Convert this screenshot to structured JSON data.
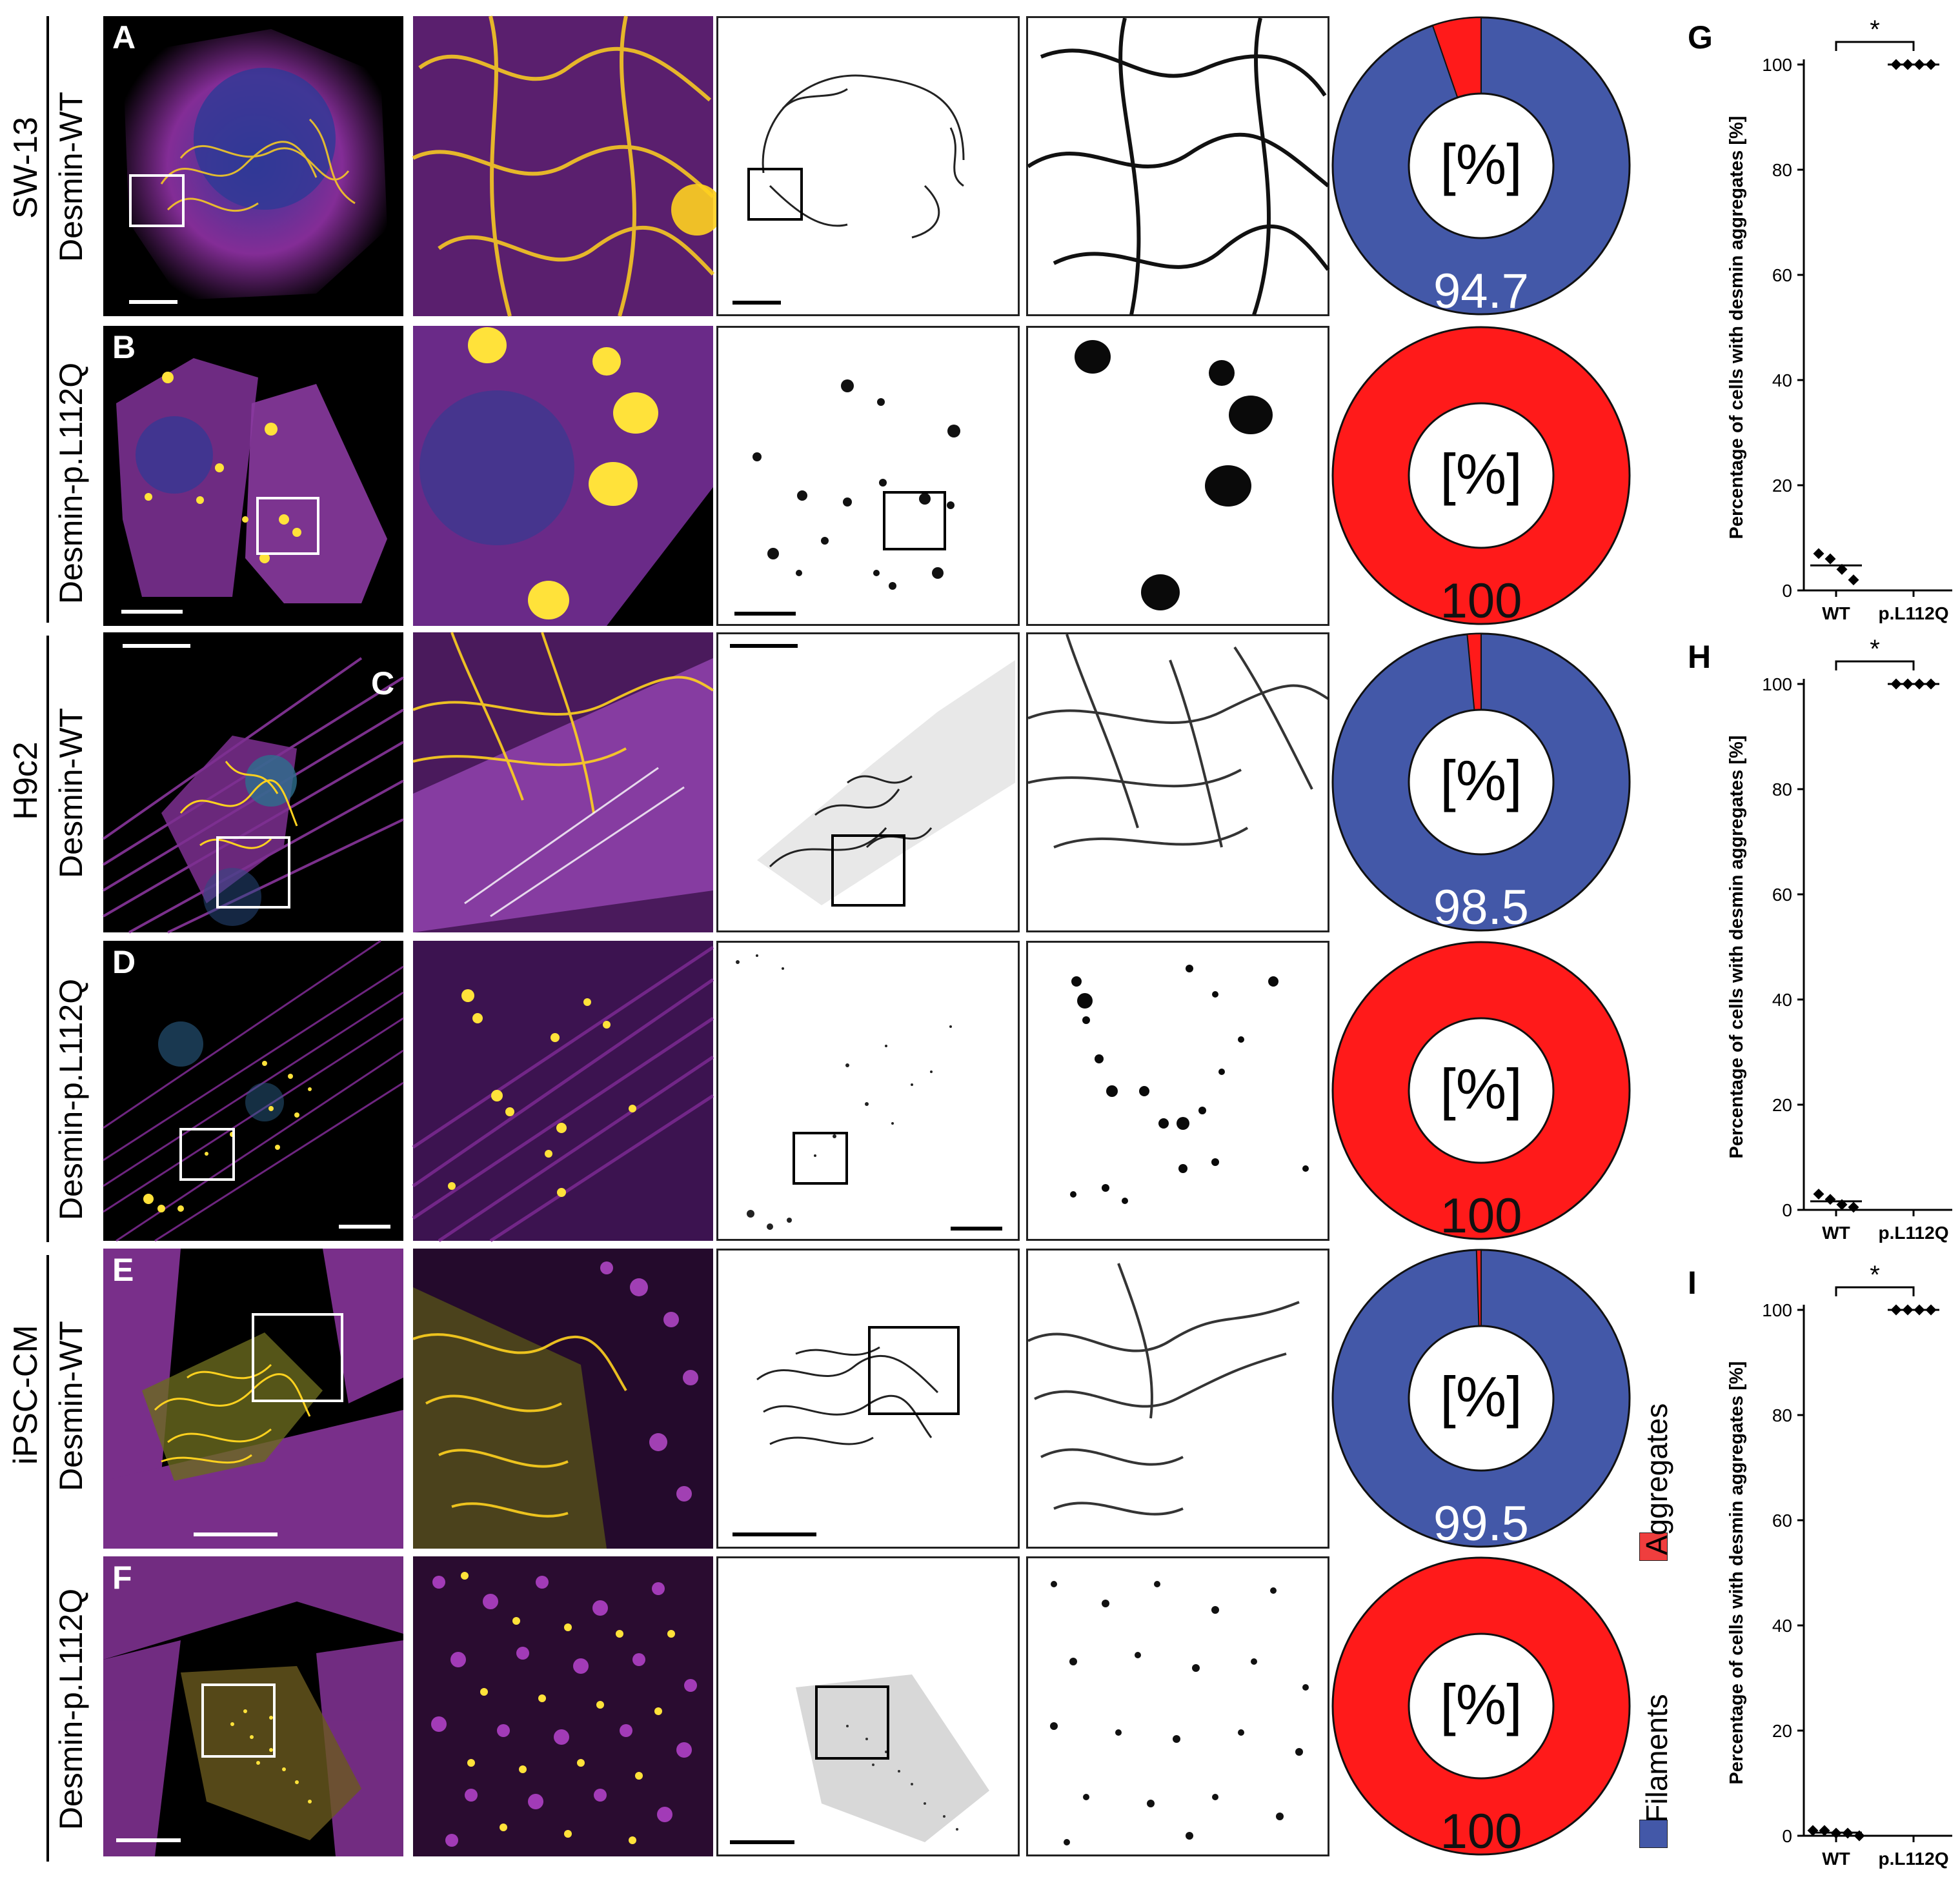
{
  "groups": [
    {
      "label": "SW-13"
    },
    {
      "label": "H9c2"
    },
    {
      "label": "iPSC-CM"
    }
  ],
  "rows": [
    {
      "label": "Desmin-WT",
      "letter": "A",
      "pie_label": "94.7",
      "filaments_pct": 94.7,
      "aggregates_pct": 5.3
    },
    {
      "label": "Desmin-p.L112Q",
      "letter": "B",
      "pie_label": "100",
      "filaments_pct": 0,
      "aggregates_pct": 100
    },
    {
      "label": "Desmin-WT",
      "letter": "C",
      "pie_label": "98.5",
      "filaments_pct": 98.5,
      "aggregates_pct": 1.5
    },
    {
      "label": "Desmin-p.L112Q",
      "letter": "D",
      "pie_label": "100",
      "filaments_pct": 0,
      "aggregates_pct": 100
    },
    {
      "label": "Desmin-WT",
      "letter": "E",
      "pie_label": "99.5",
      "filaments_pct": 99.5,
      "aggregates_pct": 0.5
    },
    {
      "label": "Desmin-p.L112Q",
      "letter": "F",
      "pie_label": "100",
      "filaments_pct": 0,
      "aggregates_pct": 100
    }
  ],
  "pie_center_text": "[%]",
  "legend": {
    "aggregates": {
      "label": "Aggregates",
      "color": "#ef3e3e"
    },
    "filaments": {
      "label": "Filaments",
      "color": "#4358a8"
    }
  },
  "colors": {
    "aggregates": "#ff1a1a",
    "filaments": "#4358a8"
  },
  "chart_data": [
    {
      "type": "scatter",
      "panel": "G",
      "ylabel": "Percentage of cells with desmin aggregates [%]",
      "categories": [
        "WT",
        "p.L112Q"
      ],
      "yticks": [
        "0",
        "20",
        "40",
        "60",
        "80",
        "100"
      ],
      "ylim": [
        0,
        100
      ],
      "series": [
        {
          "category": "WT",
          "values": [
            7,
            6,
            4,
            2
          ]
        },
        {
          "category": "p.L112Q",
          "values": [
            100,
            100,
            100,
            100
          ]
        }
      ],
      "significance": "*"
    },
    {
      "type": "scatter",
      "panel": "H",
      "ylabel": "Percentage of cells with desmin aggregates [%]",
      "categories": [
        "WT",
        "p.L112Q"
      ],
      "yticks": [
        "0",
        "20",
        "40",
        "60",
        "80",
        "100"
      ],
      "ylim": [
        0,
        100
      ],
      "series": [
        {
          "category": "WT",
          "values": [
            3,
            2,
            1,
            0.5
          ]
        },
        {
          "category": "p.L112Q",
          "values": [
            100,
            100,
            100,
            100
          ]
        }
      ],
      "significance": "*"
    },
    {
      "type": "scatter",
      "panel": "I",
      "ylabel": "Percentage of cells with desmin aggregates [%]",
      "categories": [
        "WT",
        "p.L112Q"
      ],
      "yticks": [
        "0",
        "20",
        "40",
        "60",
        "80",
        "100"
      ],
      "ylim": [
        0,
        100
      ],
      "series": [
        {
          "category": "WT",
          "values": [
            1,
            1,
            0.5,
            0.5,
            0
          ]
        },
        {
          "category": "p.L112Q",
          "values": [
            100,
            100,
            100,
            100
          ]
        }
      ],
      "significance": "*"
    }
  ]
}
